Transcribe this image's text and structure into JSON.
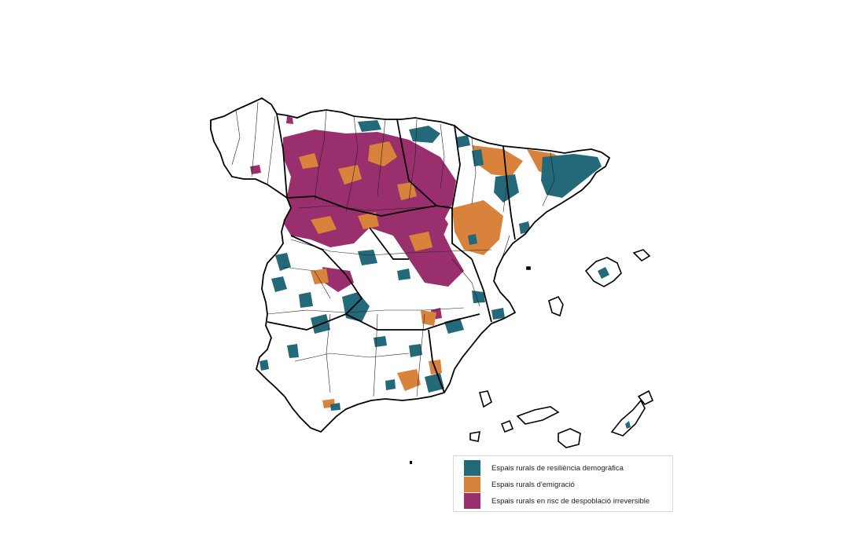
{
  "legend": {
    "items": [
      {
        "label": "Espais rurals de resiliència demogràfica",
        "color": "#23697a"
      },
      {
        "label": "Espais rurals d'emigració",
        "color": "#d9823b"
      },
      {
        "label": "Espais rurals en risc de despoblació irreversible",
        "color": "#9a2f6d"
      }
    ]
  }
}
